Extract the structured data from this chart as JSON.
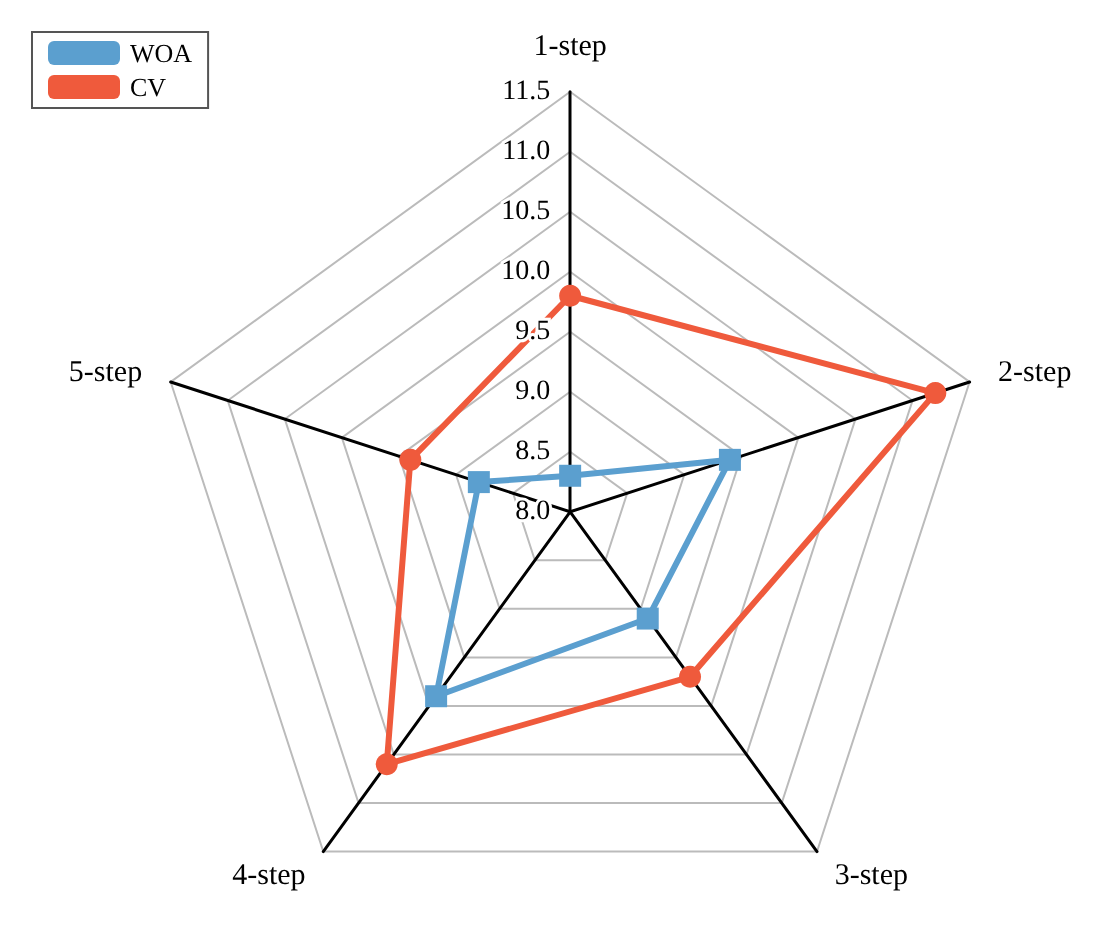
{
  "chart_data": {
    "type": "radar",
    "categories": [
      "1-step",
      "2-step",
      "3-step",
      "4-step",
      "5-step"
    ],
    "series": [
      {
        "name": "WOA",
        "color": "#5b9fcf",
        "values": [
          8.3,
          9.4,
          9.1,
          9.9,
          8.8
        ],
        "marker": "square"
      },
      {
        "name": "CV",
        "color": "#ef5a3c",
        "values": [
          9.8,
          11.2,
          9.7,
          10.6,
          9.4
        ],
        "marker": "circle"
      }
    ],
    "ylim": [
      8.0,
      11.5
    ],
    "yticks": [
      {
        "value": 8,
        "label": "8.0"
      },
      8.5,
      {
        "value": 9,
        "label": "9.0"
      },
      9.5,
      {
        "value": 10,
        "label": "10.0"
      },
      10.5,
      {
        "value": 11,
        "label": "11.0"
      },
      11.5
    ],
    "grid": true,
    "legend": "top left"
  }
}
